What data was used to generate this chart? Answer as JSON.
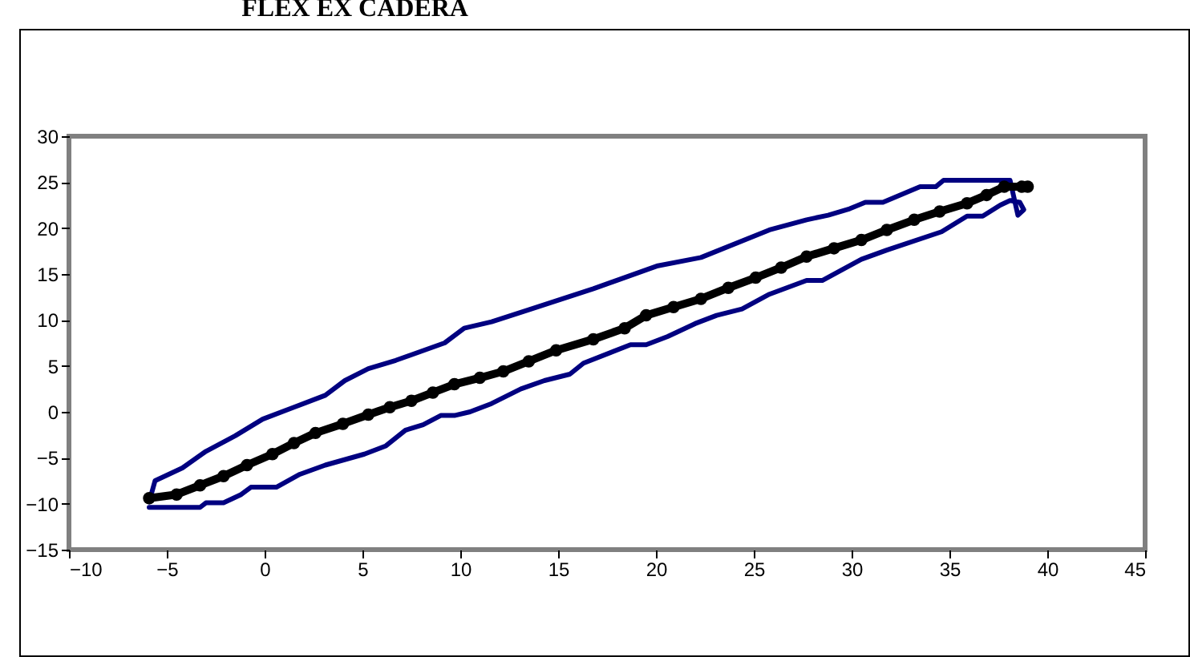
{
  "chart_data": {
    "type": "line",
    "title": "FLEX EX CADERA",
    "xlim": [
      -10,
      45
    ],
    "ylim": [
      -15,
      30
    ],
    "xticks": [
      -10,
      -5,
      0,
      5,
      10,
      15,
      20,
      25,
      30,
      35,
      40,
      45
    ],
    "yticks": [
      -15,
      -10,
      -5,
      0,
      5,
      10,
      15,
      20,
      25,
      30
    ],
    "series": [
      {
        "color": "#000080",
        "marker": "none",
        "x": [
          -5.9,
          -3.3,
          -3.0,
          -2.1,
          -1.2,
          -0.7,
          0.6,
          1.8,
          3.1,
          5.1,
          6.2,
          7.2,
          8.1,
          9.0,
          9.7,
          10.5,
          11.6,
          13.1,
          14.3,
          15.6,
          16.3,
          18.7,
          19.5,
          20.6,
          22.0,
          23.1,
          24.4,
          25.8,
          27.7,
          28.5,
          30.5,
          31.8,
          34.6,
          35.9,
          36.7,
          37.6,
          38.1,
          38.6,
          38.8,
          38.5,
          38.1,
          34.7,
          34.3,
          33.5,
          31.6,
          30.7,
          29.9,
          28.8,
          27.7,
          25.8,
          22.3,
          20.1,
          16.8,
          13.5,
          11.6,
          10.2,
          9.2,
          6.7,
          5.3,
          4.1,
          3.1,
          1.5,
          -0.1,
          -1.5,
          -3.0,
          -4.2,
          -5.6,
          -5.9
        ],
        "values": [
          -10.4,
          -10.4,
          -9.9,
          -9.9,
          -9.0,
          -8.2,
          -8.2,
          -6.8,
          -5.8,
          -4.6,
          -3.7,
          -2.0,
          -1.4,
          -0.4,
          -0.4,
          0.0,
          0.9,
          2.5,
          3.4,
          4.1,
          5.3,
          7.3,
          7.3,
          8.2,
          9.6,
          10.5,
          11.2,
          12.8,
          14.3,
          14.3,
          16.6,
          17.6,
          19.6,
          21.3,
          21.3,
          22.5,
          23.0,
          22.8,
          22.0,
          21.4,
          25.2,
          25.2,
          24.5,
          24.5,
          22.8,
          22.8,
          22.1,
          21.4,
          20.9,
          19.8,
          16.8,
          15.9,
          13.4,
          11.1,
          9.8,
          9.1,
          7.5,
          5.6,
          4.7,
          3.4,
          1.8,
          0.5,
          -0.8,
          -2.6,
          -4.3,
          -6.1,
          -7.5,
          -9.8
        ]
      },
      {
        "color": "#000000",
        "marker": "circle",
        "x": [
          -5.9,
          -4.5,
          -3.3,
          -2.1,
          -0.9,
          0.4,
          1.5,
          2.6,
          4.0,
          5.3,
          6.4,
          7.5,
          8.6,
          9.7,
          11.0,
          12.2,
          13.5,
          14.9,
          16.8,
          18.4,
          19.5,
          20.9,
          22.3,
          23.7,
          25.1,
          26.4,
          27.7,
          29.1,
          30.5,
          31.8,
          33.2,
          34.5,
          35.9,
          36.9,
          37.8,
          38.7,
          39.0
        ],
        "values": [
          -9.4,
          -9.0,
          -8.0,
          -7.0,
          -5.8,
          -4.6,
          -3.4,
          -2.3,
          -1.3,
          -0.3,
          0.5,
          1.2,
          2.1,
          3.0,
          3.7,
          4.4,
          5.5,
          6.7,
          7.9,
          9.1,
          10.5,
          11.4,
          12.3,
          13.5,
          14.6,
          15.7,
          16.9,
          17.8,
          18.7,
          19.8,
          20.9,
          21.8,
          22.7,
          23.6,
          24.5,
          24.5,
          24.5
        ]
      }
    ]
  }
}
